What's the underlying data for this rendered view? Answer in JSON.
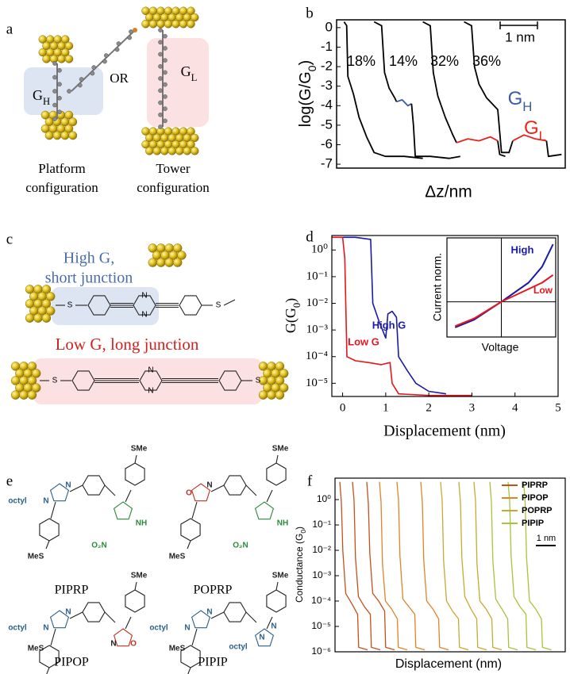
{
  "panel_labels": [
    "a",
    "b",
    "c",
    "d",
    "e",
    "f"
  ],
  "panel_a": {
    "left_caption": [
      "Platform",
      "configuration"
    ],
    "right_caption": [
      "Tower",
      "configuration"
    ],
    "or": "OR",
    "gh": [
      "G",
      "H"
    ],
    "gl": [
      "G",
      "L"
    ]
  },
  "panel_c": {
    "high": [
      "High G,",
      "short junction"
    ],
    "low": "Low G, long junction",
    "atoms_top": [
      "S",
      "N",
      "N",
      "S"
    ],
    "atoms_bottom": [
      "S",
      "N",
      "N",
      "S"
    ]
  },
  "panel_e": {
    "molecules": [
      {
        "name": "PIPRP",
        "atoms": [
          "octyl",
          "N",
          "N",
          "SMe",
          "MeS",
          "O₂N",
          "NH"
        ]
      },
      {
        "name": "POPRP",
        "atoms": [
          "O",
          "N",
          "SMe",
          "MeS",
          "O₂N",
          "NH"
        ]
      },
      {
        "name": "PIPOP",
        "atoms": [
          "octyl",
          "N",
          "N",
          "SMe",
          "MeS",
          "O",
          "N"
        ]
      },
      {
        "name": "PIPIP",
        "atoms": [
          "octyl",
          "N",
          "N",
          "SMe",
          "MeS",
          "octyl",
          "N",
          "N"
        ]
      }
    ]
  },
  "chart_data": [
    {
      "type": "line",
      "ylabel": [
        "log(G/G",
        "0",
        ")"
      ],
      "xlabel": "Δz/nm",
      "xlim": [
        0,
        6.1
      ],
      "ylim": [
        -7.2,
        0.4
      ],
      "yticks": [
        0,
        -1,
        -2,
        -3,
        -4,
        -5,
        -6,
        -7
      ],
      "annotations": [
        "18%",
        "14%",
        "32%",
        "36%"
      ],
      "scale_bar": "1 nm",
      "labels": [
        [
          "G",
          "H"
        ],
        [
          "G",
          "L"
        ]
      ],
      "series": [
        {
          "color": "#000000",
          "x": [
            0.2,
            0.27,
            0.3,
            0.45,
            0.6,
            0.8,
            1.0,
            1.3,
            1.8,
            2.3
          ],
          "values": [
            0.3,
            0.1,
            -2.5,
            -3.4,
            -4.6,
            -5.6,
            -6.4,
            -6.6,
            -6.6,
            -6.7
          ]
        },
        {
          "color": "#000000",
          "x": [
            1.0,
            1.2,
            1.28,
            1.4,
            1.55,
            1.6
          ],
          "values": [
            0.3,
            0.1,
            -2.3,
            -3.1,
            -3.6,
            -3.8
          ]
        },
        {
          "color": "#3b5ba5",
          "x": [
            1.6,
            1.75,
            1.9,
            2.0
          ],
          "values": [
            -3.8,
            -3.7,
            -4.0,
            -3.9
          ]
        },
        {
          "color": "#000000",
          "x": [
            2.0,
            2.05,
            2.1,
            2.5,
            3.0,
            3.3
          ],
          "values": [
            -3.9,
            -5.0,
            -6.6,
            -6.6,
            -6.7,
            -6.6
          ]
        },
        {
          "color": "#000000",
          "x": [
            2.3,
            2.5,
            2.58,
            2.7,
            2.9,
            3.1,
            3.2
          ],
          "values": [
            0.3,
            0.1,
            -2.3,
            -3.5,
            -4.6,
            -5.5,
            -5.9
          ]
        },
        {
          "color": "#e8261e",
          "x": [
            3.2,
            3.5,
            3.8,
            4.1,
            4.3
          ],
          "values": [
            -5.9,
            -5.7,
            -5.8,
            -5.6,
            -5.8
          ]
        },
        {
          "color": "#000000",
          "x": [
            4.3,
            4.35,
            4.5
          ],
          "values": [
            -5.8,
            -6.5,
            -6.6
          ]
        },
        {
          "color": "#000000",
          "x": [
            3.4,
            3.6,
            3.68,
            3.8,
            4.0,
            4.3,
            4.4,
            4.6,
            4.7
          ],
          "values": [
            0.3,
            0.1,
            -2.0,
            -2.9,
            -3.6,
            -4.2,
            -6.4,
            -6.4,
            -5.8
          ]
        },
        {
          "color": "#e8261e",
          "x": [
            4.7,
            5.0,
            5.3,
            5.6
          ],
          "values": [
            -5.8,
            -5.5,
            -5.7,
            -5.8
          ]
        },
        {
          "color": "#000000",
          "x": [
            5.6,
            5.65,
            6.0
          ],
          "values": [
            -5.8,
            -6.6,
            -6.5
          ]
        }
      ]
    },
    {
      "type": "line",
      "log_y": true,
      "ylabel": [
        "G(G",
        "0",
        ")"
      ],
      "xlabel": "Displacement (nm)",
      "xlim": [
        -0.25,
        5
      ],
      "ylim": [
        3.2e-06,
        3.5
      ],
      "xticks": [
        0,
        1,
        2,
        3,
        4,
        5
      ],
      "yticks": [
        {
          "value": 1,
          "label": "10⁰"
        },
        {
          "value": 0.1,
          "label": "10⁻¹"
        },
        {
          "value": 0.01,
          "label": "10⁻²"
        },
        {
          "value": 0.001,
          "label": "10⁻³"
        },
        {
          "value": 0.0001,
          "label": "10⁻⁴"
        },
        {
          "value": 1e-05,
          "label": "10⁻⁵"
        }
      ],
      "annotations": [
        "High G",
        "Low G"
      ],
      "series": [
        {
          "color": "#1a1aa8",
          "x": [
            0,
            0.3,
            0.65,
            0.7,
            0.85,
            1.0,
            1.05,
            1.15,
            1.25,
            1.3,
            1.5,
            1.7,
            2.0,
            2.4
          ],
          "values": [
            3,
            3,
            2.5,
            0.01,
            0.002,
            0.0005,
            0.004,
            0.005,
            0.003,
            0.0001,
            3e-05,
            1e-05,
            5e-06,
            4e-06
          ]
        },
        {
          "color": "#e8141e",
          "x": [
            -0.25,
            0,
            0.05,
            0.1,
            0.3,
            0.6,
            0.9,
            1.1,
            1.15,
            1.3,
            2,
            3
          ],
          "values": [
            3,
            3,
            0.5,
            0.0001,
            7e-05,
            6e-05,
            5e-05,
            6e-05,
            1e-05,
            4e-06,
            3.5e-06,
            3.5e-06
          ]
        }
      ]
    },
    {
      "type": "line",
      "xlabel": "Voltage",
      "ylabel": "Current norm.",
      "labels": [
        "High",
        "Low"
      ],
      "xlim": [
        -1,
        1
      ],
      "ylim": [
        -0.55,
        1
      ],
      "series": [
        {
          "color": "#1a1aa8",
          "x": [
            -0.85,
            -0.5,
            0,
            0.5,
            0.75,
            0.95
          ],
          "values": [
            -0.4,
            -0.28,
            0,
            0.3,
            0.55,
            0.9
          ]
        },
        {
          "color": "#e8141e",
          "x": [
            -0.85,
            -0.5,
            0,
            0.5,
            0.75,
            0.95
          ],
          "values": [
            -0.38,
            -0.26,
            0,
            0.2,
            0.3,
            0.42
          ]
        }
      ]
    },
    {
      "type": "line",
      "log_y": true,
      "ylabel": [
        "Conductance (G",
        "0",
        ")"
      ],
      "xlabel": "Displacement (nm)",
      "scale_bar": "1 nm",
      "xlim": [
        0,
        11.6
      ],
      "ylim": [
        1e-06,
        7
      ],
      "yticks": [
        {
          "value": 1,
          "label": "10⁰"
        },
        {
          "value": 0.1,
          "label": "10⁻¹"
        },
        {
          "value": 0.01,
          "label": "10⁻²"
        },
        {
          "value": 0.001,
          "label": "10⁻³"
        },
        {
          "value": 0.0001,
          "label": "10⁻⁴"
        },
        {
          "value": 1e-05,
          "label": "10⁻⁵"
        },
        {
          "value": 1e-06,
          "label": "10⁻⁶"
        }
      ],
      "series": [
        {
          "name": "PIPRP",
          "color": "#c4501a",
          "traces": [
            {
              "x": [
                0.24,
                0.32,
                0.39,
                0.54,
                0.84,
                1.14,
                1.19,
                1.64
              ],
              "values": [
                5,
                0.8,
                0.01,
                0.0002,
                8e-05,
                3e-05,
                1.5e-06,
                1.2e-06
              ]
            },
            {
              "x": [
                0.88,
                0.96,
                1.03,
                1.18,
                1.48,
                1.78,
                1.83,
                2.28
              ],
              "values": [
                5,
                0.9,
                0.005,
                0.00015,
                6e-05,
                3e-05,
                1.5e-06,
                1.2e-06
              ]
            },
            {
              "x": [
                1.6,
                1.68,
                1.75,
                1.9,
                2.2,
                2.5,
                2.55,
                3.0
              ],
              "values": [
                5,
                0.7,
                0.008,
                0.0002,
                0.0001,
                4e-05,
                1.5e-06,
                1.2e-06
              ]
            }
          ]
        },
        {
          "name": "PIPOP",
          "color": "#e0832a",
          "traces": [
            {
              "x": [
                2.24,
                2.32,
                2.39,
                2.54,
                2.84,
                3.14,
                3.19,
                3.64
              ],
              "values": [
                5,
                0.8,
                0.003,
                0.0001,
                5e-05,
                2e-05,
                1.5e-06,
                1.2e-06
              ]
            },
            {
              "x": [
                3.12,
                3.2,
                3.27,
                3.42,
                3.72,
                4.02,
                4.07,
                4.52
              ],
              "values": [
                5,
                0.9,
                0.006,
                0.00012,
                6e-05,
                3e-05,
                1.5e-06,
                1.2e-06
              ]
            },
            {
              "x": [
                4.32,
                4.4,
                4.47,
                4.62,
                4.92,
                5.22,
                5.27,
                5.72
              ],
              "values": [
                5,
                0.8,
                0.004,
                0.0001,
                5e-05,
                2e-05,
                1.5e-06,
                1.2e-06
              ]
            }
          ]
        },
        {
          "name": "POPRP",
          "color": "#c8a830",
          "traces": [
            {
              "x": [
                5.32,
                5.4,
                5.47,
                5.62,
                5.92,
                6.22,
                6.27,
                6.72
              ],
              "values": [
                5,
                0.9,
                0.004,
                0.0001,
                4e-05,
                2e-05,
                1.5e-06,
                1.2e-06
              ]
            },
            {
              "x": [
                6.24,
                6.32,
                6.39,
                6.54,
                6.84,
                7.14,
                7.19,
                7.64
              ],
              "values": [
                5,
                0.8,
                0.005,
                0.00015,
                5e-05,
                2e-05,
                1.5e-06,
                1.2e-06
              ]
            },
            {
              "x": [
                7.0,
                7.08,
                7.15,
                7.3,
                7.6,
                7.9,
                7.95,
                8.4
              ],
              "values": [
                5,
                0.9,
                0.003,
                0.0001,
                5e-05,
                2e-05,
                1.5e-06,
                1.2e-06
              ]
            }
          ]
        },
        {
          "name": "PIPIP",
          "color": "#a6c43c",
          "traces": [
            {
              "x": [
                7.8,
                7.88,
                7.95,
                8.1,
                8.4,
                8.7,
                8.75,
                9.2
              ],
              "values": [
                5,
                0.8,
                0.004,
                0.00012,
                5e-05,
                2e-05,
                1.5e-06,
                1.2e-06
              ]
            },
            {
              "x": [
                8.72,
                8.8,
                8.87,
                9.02,
                9.32,
                9.62,
                9.67,
                10.12
              ],
              "values": [
                5,
                0.9,
                0.006,
                0.00015,
                6e-05,
                3e-05,
                1.5e-06,
                1.2e-06
              ]
            },
            {
              "x": [
                9.5,
                9.58,
                9.65,
                9.8,
                10.1,
                10.4,
                10.45,
                10.9
              ],
              "values": [
                5,
                0.8,
                0.005,
                0.0001,
                5e-05,
                2e-05,
                1.5e-06,
                1.2e-06
              ]
            }
          ]
        }
      ]
    }
  ]
}
